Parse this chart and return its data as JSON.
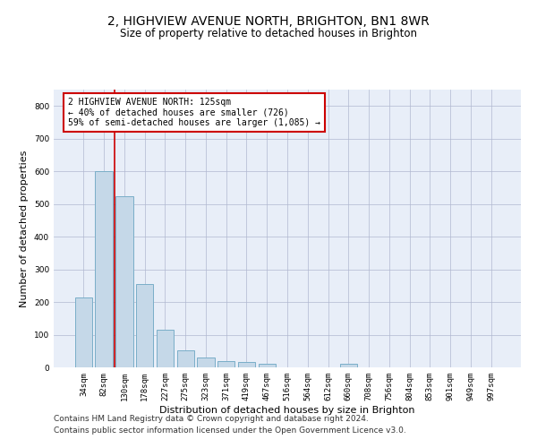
{
  "title": "2, HIGHVIEW AVENUE NORTH, BRIGHTON, BN1 8WR",
  "subtitle": "Size of property relative to detached houses in Brighton",
  "xlabel": "Distribution of detached houses by size in Brighton",
  "ylabel": "Number of detached properties",
  "footer1": "Contains HM Land Registry data © Crown copyright and database right 2024.",
  "footer2": "Contains public sector information licensed under the Open Government Licence v3.0.",
  "bar_labels": [
    "34sqm",
    "82sqm",
    "130sqm",
    "178sqm",
    "227sqm",
    "275sqm",
    "323sqm",
    "371sqm",
    "419sqm",
    "467sqm",
    "516sqm",
    "564sqm",
    "612sqm",
    "660sqm",
    "708sqm",
    "756sqm",
    "804sqm",
    "853sqm",
    "901sqm",
    "949sqm",
    "997sqm"
  ],
  "bar_values": [
    215,
    600,
    525,
    255,
    115,
    52,
    31,
    20,
    16,
    10,
    0,
    0,
    0,
    10,
    0,
    0,
    0,
    0,
    0,
    0,
    0
  ],
  "bar_color": "#c5d8e8",
  "bar_edge_color": "#7aaec8",
  "annotation_text": "2 HIGHVIEW AVENUE NORTH: 125sqm\n← 40% of detached houses are smaller (726)\n59% of semi-detached houses are larger (1,085) →",
  "vline_x": 1.5,
  "vline_color": "#cc0000",
  "box_color": "#cc0000",
  "ylim": [
    0,
    850
  ],
  "yticks": [
    0,
    100,
    200,
    300,
    400,
    500,
    600,
    700,
    800
  ],
  "grid_color": "#b0b8d0",
  "bg_color": "#e8eef8",
  "title_fontsize": 10,
  "subtitle_fontsize": 8.5,
  "axis_label_fontsize": 8,
  "tick_fontsize": 6.5,
  "annotation_fontsize": 7,
  "footer_fontsize": 6.5
}
